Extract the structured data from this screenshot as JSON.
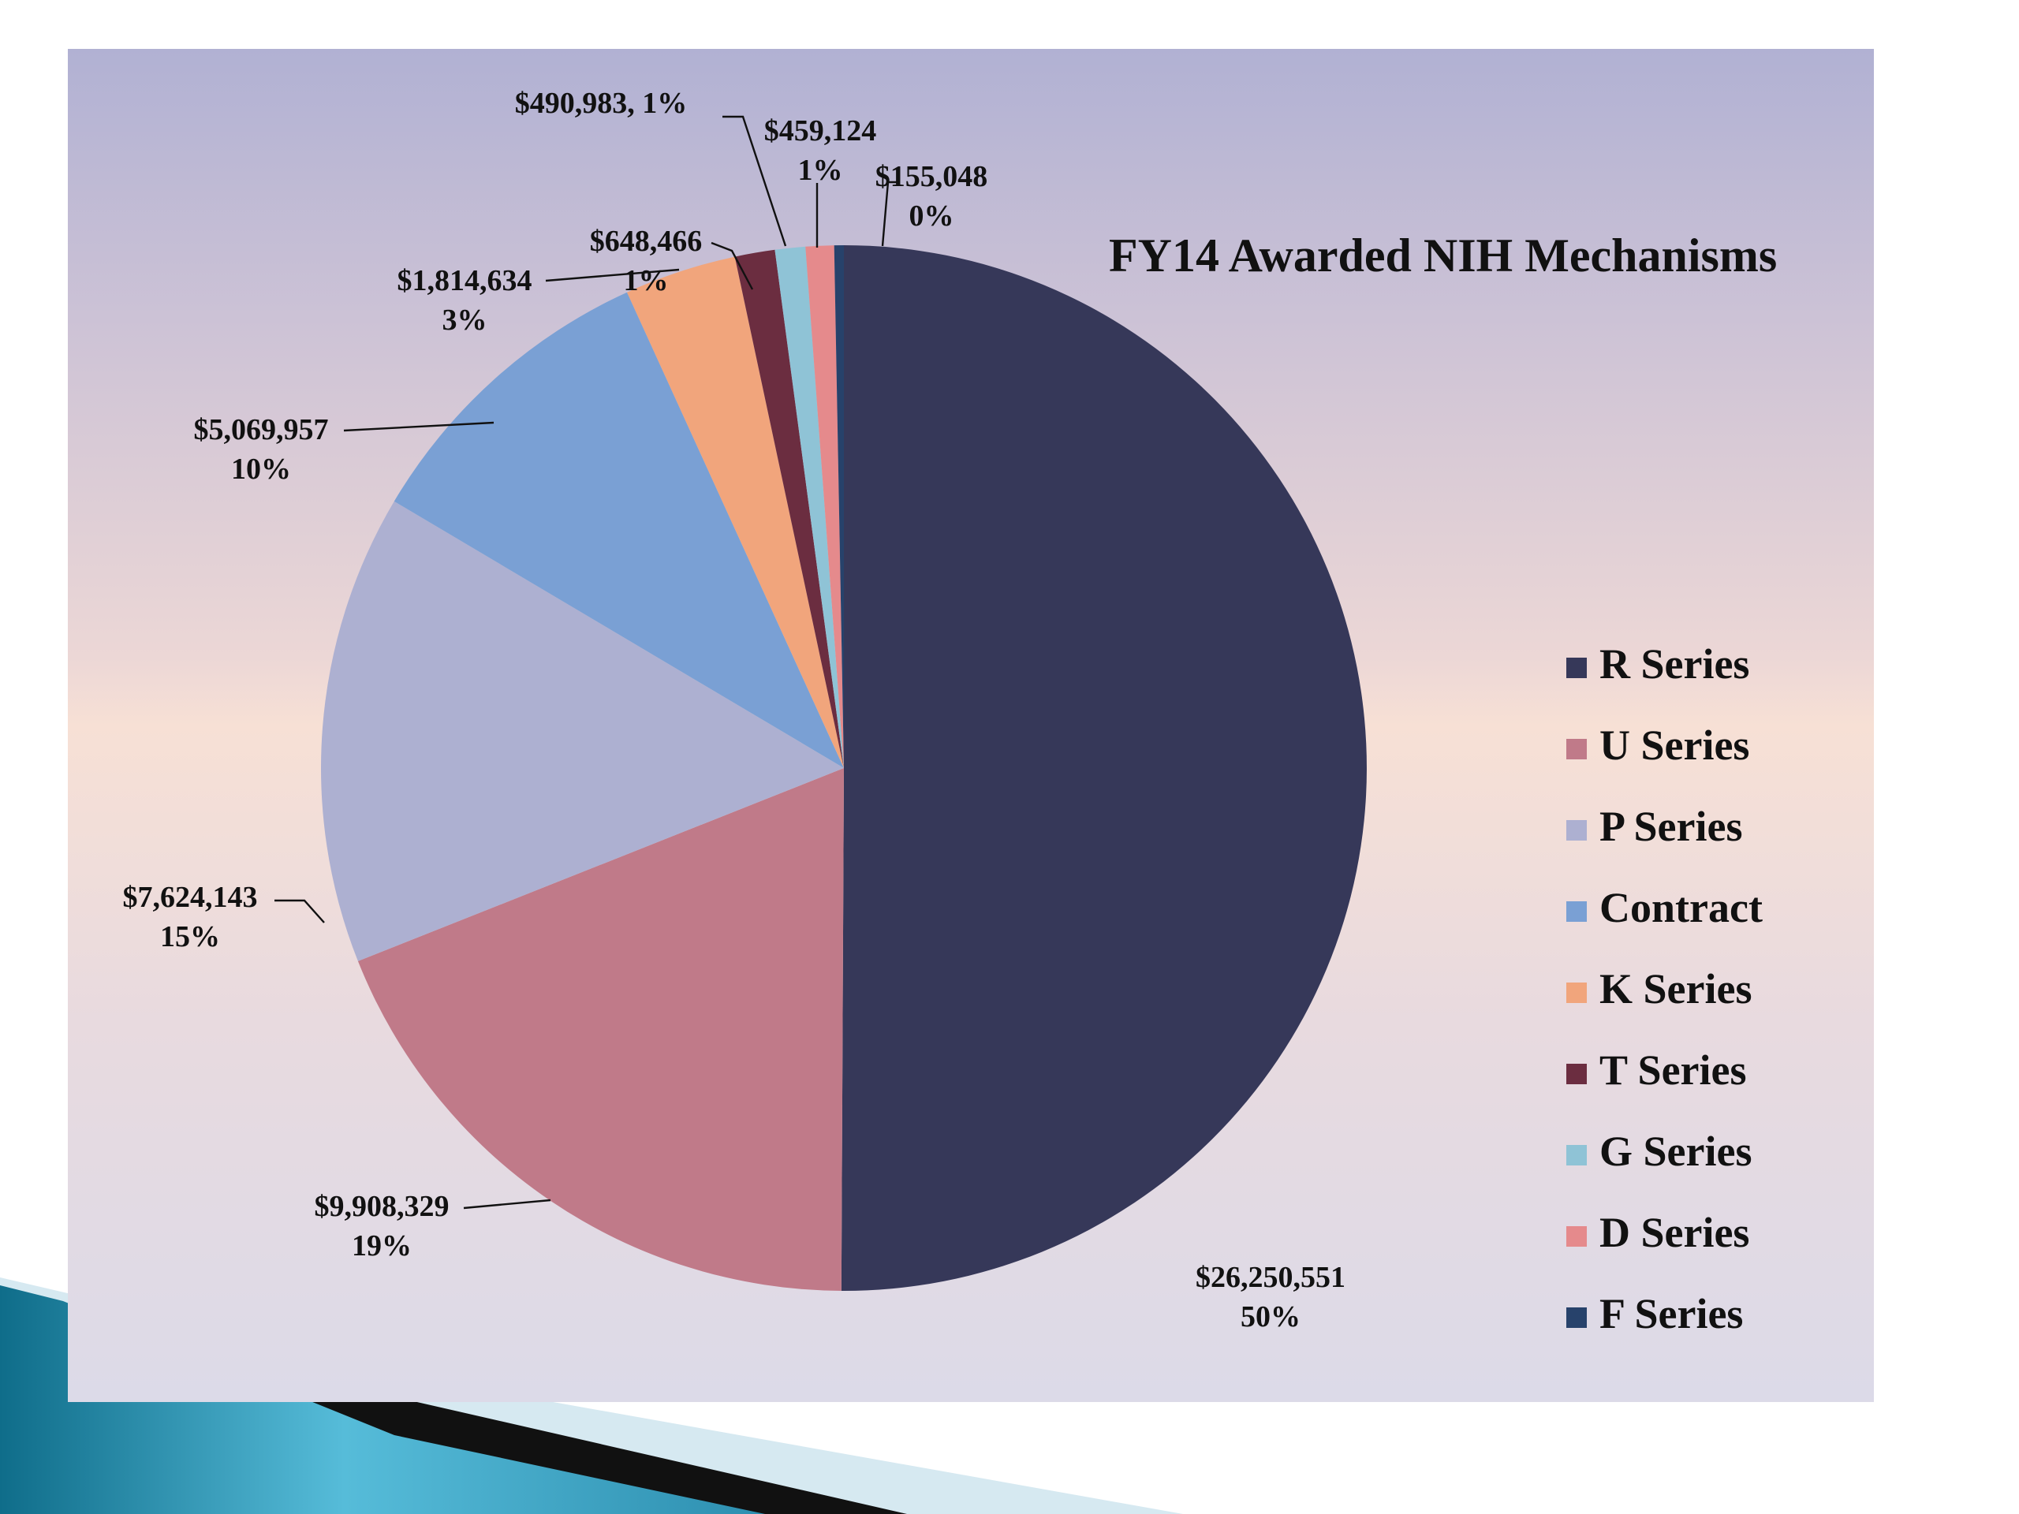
{
  "chart_data": {
    "type": "pie",
    "title": "FY14 Awarded NIH Mechanisms",
    "slices": [
      {
        "name": "R Series",
        "value": 26250551,
        "color": "#363859",
        "label_value": "$26,250,551",
        "label_pct": "50%"
      },
      {
        "name": "U Series",
        "value": 9908329,
        "color": "#c07a89",
        "label_value": "$9,908,329",
        "label_pct": "19%"
      },
      {
        "name": "P Series",
        "value": 7624143,
        "color": "#adb0d1",
        "label_value": "$7,624,143",
        "label_pct": "15%"
      },
      {
        "name": "Contract",
        "value": 5069957,
        "color": "#7aa0d4",
        "label_value": "$5,069,957",
        "label_pct": "10%"
      },
      {
        "name": "K Series",
        "value": 1814634,
        "color": "#f1a57c",
        "label_value": "$1,814,634",
        "label_pct": "3%"
      },
      {
        "name": "T Series",
        "value": 648466,
        "color": "#6b2d40",
        "label_value": "$648,466",
        "label_pct": "1%"
      },
      {
        "name": "G Series",
        "value": 490983,
        "color": "#8fc3d6",
        "label_value": "$490,983, 1%",
        "label_pct": ""
      },
      {
        "name": "D Series",
        "value": 459124,
        "color": "#e58a8c",
        "label_value": "$459,124",
        "label_pct": "1%"
      },
      {
        "name": "F Series",
        "value": 155048,
        "color": "#27426b",
        "label_value": "$155,048",
        "label_pct": "0%"
      }
    ],
    "legend_position": "right",
    "start_angle_deg": 0,
    "direction": "clockwise"
  }
}
